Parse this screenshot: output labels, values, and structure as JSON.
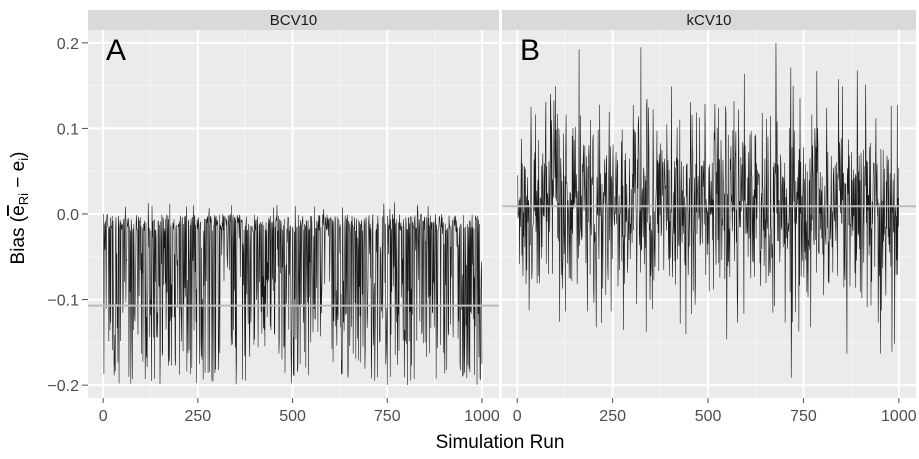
{
  "chart_data": {
    "type": "line",
    "xlabel": "Simulation Run",
    "ylabel_main": "Bias (",
    "ylabel_ebar": "e",
    "ylabel_sub1": "Ri",
    "ylabel_minus": " − e",
    "ylabel_sub2": "i",
    "ylabel_close": ")",
    "xlim": [
      -40,
      1045
    ],
    "ylim": [
      -0.215,
      0.215
    ],
    "xticks": [
      0,
      250,
      500,
      750,
      1000
    ],
    "xtick_labels": [
      "0",
      "250",
      "500",
      "750",
      "1000"
    ],
    "yticks": [
      -0.2,
      -0.1,
      0.0,
      0.1,
      0.2
    ],
    "ytick_labels": [
      "−0.2",
      "−0.1",
      "0.0",
      "0.1",
      "0.2"
    ],
    "grid": true,
    "panels": [
      {
        "strip": "BCV10",
        "tag": "A",
        "n_runs": 1000,
        "value_min": -0.2,
        "value_max": 0.015,
        "mean_bias": -0.107,
        "colors": {
          "line": "#1a1a1a",
          "mean": "#bdbdbd"
        }
      },
      {
        "strip": "kCV10",
        "tag": "B",
        "n_runs": 1000,
        "value_min": -0.195,
        "value_max": 0.2,
        "mean_bias": 0.009,
        "colors": {
          "line": "#1a1a1a",
          "mean": "#bdbdbd"
        }
      }
    ],
    "colors": {
      "panel_bg": "#ebebeb",
      "strip_bg": "#d9d9d9",
      "grid": "#ffffff"
    }
  }
}
